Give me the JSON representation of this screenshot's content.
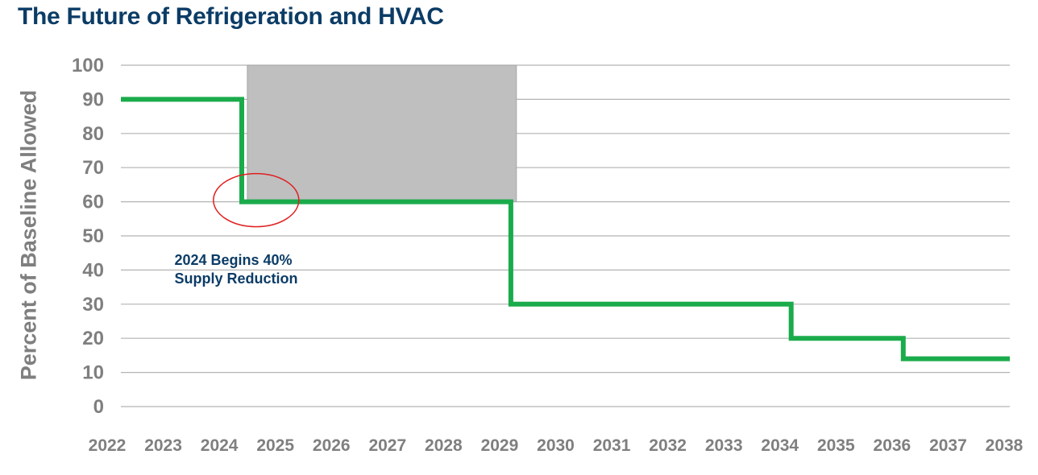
{
  "chart_data": {
    "type": "line",
    "title": "The Future of Refrigeration and HVAC",
    "xlabel": "",
    "ylabel": "Percent of Baseline Allowed",
    "ylim": [
      0,
      100
    ],
    "yticks": [
      0,
      10,
      20,
      30,
      40,
      50,
      60,
      70,
      80,
      90,
      100
    ],
    "categories": [
      "2022",
      "2023",
      "2024",
      "2025",
      "2026",
      "2027",
      "2028",
      "2029",
      "2030",
      "2031",
      "2032",
      "2033",
      "2034",
      "2035",
      "2036",
      "2037",
      "2038"
    ],
    "step_series": {
      "color": "#1aab4b",
      "points": [
        {
          "x": 2022,
          "y": 90
        },
        {
          "x": 2024.4,
          "y": 90
        },
        {
          "x": 2024.4,
          "y": 60
        },
        {
          "x": 2029.2,
          "y": 60
        },
        {
          "x": 2029.2,
          "y": 30
        },
        {
          "x": 2034.2,
          "y": 30
        },
        {
          "x": 2034.2,
          "y": 20
        },
        {
          "x": 2036.2,
          "y": 20
        },
        {
          "x": 2036.2,
          "y": 14
        },
        {
          "x": 2038,
          "y": 14
        }
      ]
    },
    "shaded_region": {
      "x0": 2024.5,
      "x1": 2029.3,
      "y0": 60,
      "y1": 100,
      "color": "#bfbfbf"
    },
    "highlight_circle": {
      "x": 2024.7,
      "y": 60,
      "color": "#e02020"
    },
    "annotation": {
      "lines": [
        "2024 Begins 40%",
        "Supply Reduction"
      ],
      "x": 2023.2,
      "y": 42
    },
    "grid": true,
    "legend": "none"
  }
}
